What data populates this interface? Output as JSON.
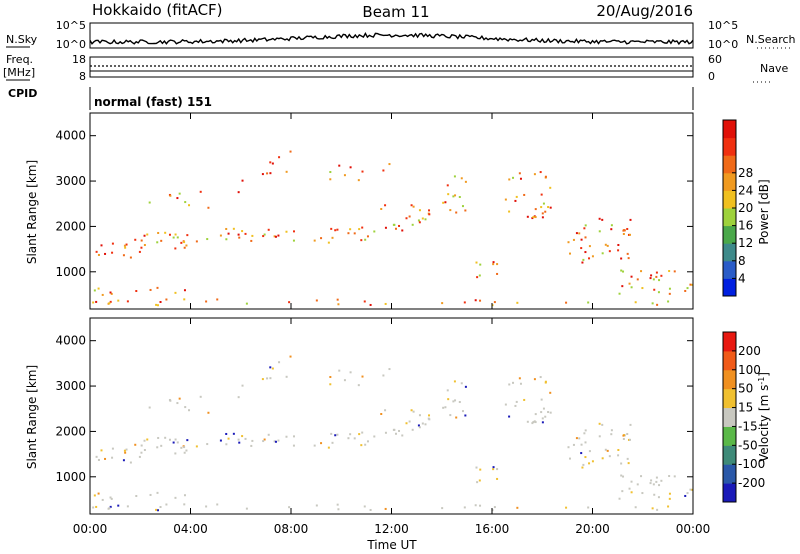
{
  "header": {
    "radar": "Hokkaido (fitACF)",
    "beam": "Beam 11",
    "date": "20/Aug/2016"
  },
  "top_panel": {
    "left_label_nsky": "N.Sky",
    "left_label_freq": "Freq.",
    "left_label_mhz": "[MHz]",
    "left_label_cpid": "CPID",
    "right_label_nsearch": "N.Search",
    "right_label_nave": "Nave",
    "noise_ticks_left": [
      "10^5",
      "10^0"
    ],
    "noise_ticks_right": [
      "10^5",
      "10^0"
    ],
    "freq_ticks": [
      "18",
      "8"
    ],
    "nave_ticks": [
      "60",
      "0"
    ],
    "cpid_text": "normal (fast) 151"
  },
  "chart_data": [
    {
      "type": "heatmap",
      "title": "",
      "xlabel": "Time UT",
      "ylabel": "Slant Range [km]",
      "x_ticks": [
        "00:00",
        "04:00",
        "08:00",
        "12:00",
        "16:00",
        "20:00",
        "00:00"
      ],
      "y_ticks": [
        1000,
        2000,
        3000,
        4000
      ],
      "ylim": [
        180,
        4500
      ],
      "colorbar_label": "Power [dB]",
      "colorbar_ticks": [
        4,
        8,
        12,
        16,
        20,
        24,
        28
      ],
      "colorbar_colors": [
        "#0020e0",
        "#2a5cc8",
        "#3e8a8a",
        "#4aa84a",
        "#9ed23c",
        "#f0c020",
        "#f09a20",
        "#f06a18",
        "#f03010",
        "#e01008"
      ]
    },
    {
      "type": "heatmap",
      "title": "",
      "xlabel": "Time UT",
      "ylabel": "Slant Range [km]",
      "x_ticks": [
        "00:00",
        "04:00",
        "08:00",
        "12:00",
        "16:00",
        "20:00",
        "00:00"
      ],
      "y_ticks": [
        1000,
        2000,
        3000,
        4000
      ],
      "ylim": [
        180,
        4500
      ],
      "colorbar_label": "Velocity [m s^-1]",
      "colorbar_ticks": [
        200,
        100,
        50,
        15,
        -15,
        -50,
        -100,
        -200
      ],
      "colorbar_colors": [
        "#1a1ab8",
        "#2a58a8",
        "#3e8a78",
        "#5ab848",
        "#c8c8c0",
        "#f0c030",
        "#f09020",
        "#f05a18",
        "#e81810"
      ]
    }
  ]
}
